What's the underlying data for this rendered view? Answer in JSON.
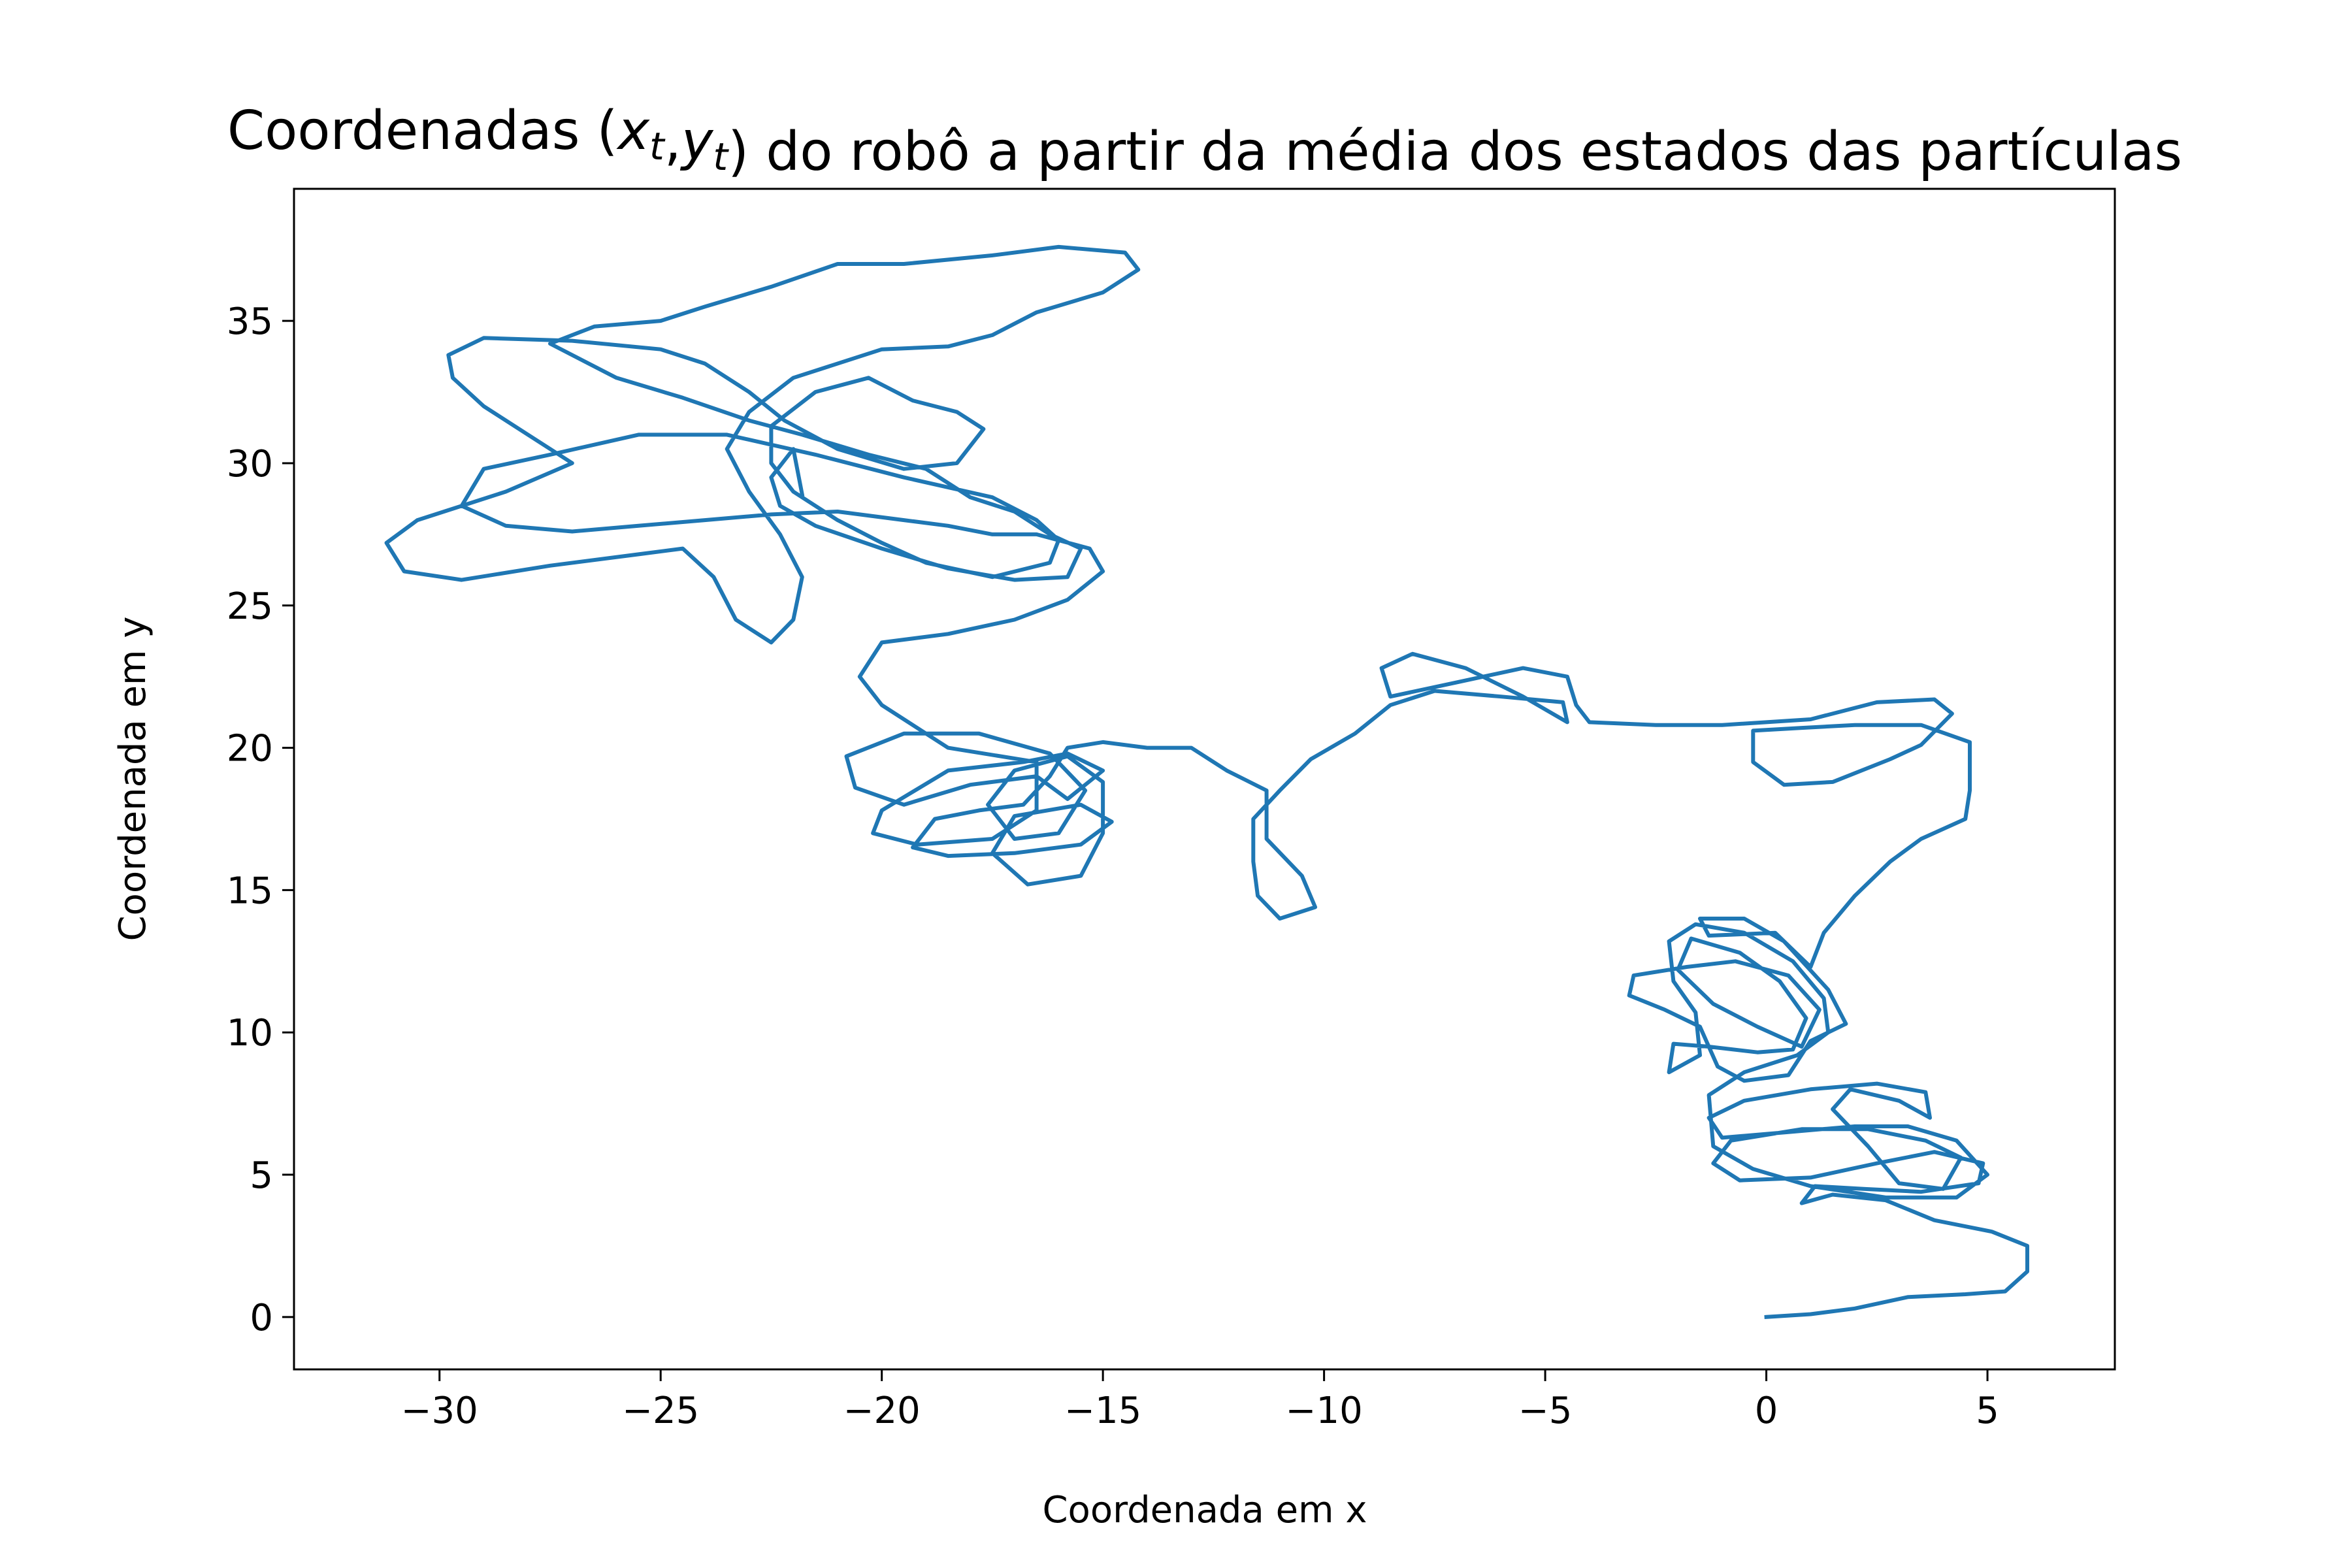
{
  "chart_data": {
    "type": "line",
    "title": "Coordenadas ($x_t$,$y_t$) do robô a partir da média dos estados das partículas",
    "x_label": "Coordenada em x",
    "y_label": "Coordenada em y",
    "color": "#1f77b4",
    "x": [
      0,
      1,
      2,
      3.2,
      4.5,
      5.4,
      5.9,
      5.9,
      5.1,
      3.8,
      2.7,
      1.5,
      0.8,
      1.1,
      2.2,
      3.5,
      4.8,
      4.9,
      3.8,
      2.5,
      1.0,
      -0.6,
      -1.2,
      -0.8,
      0.8,
      2.3,
      3.6,
      4.4,
      4.0,
      3.0,
      2.3,
      1.5,
      1.9,
      3.0,
      3.7,
      3.6,
      2.5,
      1.0,
      -0.5,
      -1.3,
      -1.0,
      0.5,
      2.0,
      3.2,
      4.3,
      5.0,
      4.3,
      2.7,
      1.0,
      -0.3,
      -1.2,
      -1.3,
      -0.5,
      0.7,
      1.4,
      1.3,
      0.6,
      -0.5,
      -1.6,
      -2.2,
      -2.1,
      -1.6,
      -1.5,
      -2.2,
      -2.1,
      -1.3,
      -0.2,
      0.6,
      0.9,
      0.3,
      -0.6,
      -1.7,
      -2.0,
      -1.2,
      -0.2,
      0.8,
      1.2,
      0.5,
      -0.7,
      -1.8,
      -3.0,
      -3.1,
      -2.3,
      -1.5,
      -1.1,
      -0.5,
      0.5,
      1.0,
      1.8,
      1.4,
      0.4,
      -0.5,
      -1.5,
      -1.3,
      0.2,
      1.0,
      1.3,
      2.0,
      2.8,
      3.5,
      4.5,
      4.6,
      4.6,
      3.5,
      2.0,
      0.8,
      -0.3,
      -0.3,
      0.4,
      1.5,
      2.8,
      3.5,
      4.2,
      3.8,
      2.5,
      1.0,
      -1.0,
      -2.5,
      -4.0,
      -4.3,
      -4.5,
      -5.5,
      -7.0,
      -8.5,
      -8.7,
      -8.0,
      -6.8,
      -5.5,
      -4.5,
      -4.6,
      -6.0,
      -7.5,
      -8.5,
      -9.3,
      -10.3,
      -11.0,
      -11.6,
      -11.6,
      -11.5,
      -11.0,
      -10.2,
      -10.5,
      -11.3,
      -11.3,
      -12.2,
      -13.0,
      -14.0,
      -15.0,
      -15.8,
      -16.2,
      -16.8,
      -17.8,
      -18.8,
      -19.3,
      -18.5,
      -17.0,
      -15.5,
      -14.8,
      -15.5,
      -17.0,
      -17.5,
      -16.7,
      -15.5,
      -15.0,
      -15.0,
      -15.8,
      -17.0,
      -17.6,
      -17.0,
      -16.0,
      -15.4,
      -16.2,
      -17.8,
      -19.5,
      -20.8,
      -20.6,
      -19.5,
      -18.0,
      -16.5,
      -15.8,
      -15.0,
      -15.8,
      -16.8,
      -18.5,
      -20.0,
      -20.2,
      -19.2,
      -17.5,
      -16.5,
      -16.5,
      -18.5,
      -20.0,
      -20.5,
      -20.0,
      -18.5,
      -17.0,
      -15.8,
      -15.0,
      -15.3,
      -16.5,
      -17.5,
      -18.5,
      -19.5,
      -21.0,
      -22.5,
      -24.0,
      -25.5,
      -27.0,
      -28.5,
      -29.5,
      -29.0,
      -27.5,
      -25.5,
      -23.5,
      -21.5,
      -19.5,
      -17.5,
      -16.5,
      -16.0,
      -16.2,
      -17.5,
      -19.0,
      -20.0,
      -21.0,
      -22.0,
      -22.5,
      -22.5,
      -21.5,
      -20.3,
      -19.3,
      -18.3,
      -17.7,
      -18.3,
      -19.5,
      -21.0,
      -22.2,
      -23.0,
      -24.0,
      -25.0,
      -27.0,
      -29.0,
      -29.8,
      -29.7,
      -29.0,
      -28.0,
      -27.0,
      -28.5,
      -30.5,
      -31.2,
      -30.8,
      -29.5,
      -27.5,
      -25.5,
      -24.5,
      -23.8,
      -23.3,
      -22.5,
      -22.0,
      -21.8,
      -22.3,
      -23.0,
      -23.5,
      -23.0,
      -22.0,
      -20.0,
      -18.5,
      -17.5,
      -16.5,
      -15.0,
      -14.2,
      -14.5,
      -16.0,
      -17.5,
      -19.5,
      -21.0,
      -22.5,
      -24.0,
      -25.0,
      -26.5,
      -27.5,
      -26.0,
      -24.5,
      -23.0,
      -21.8,
      -20.3,
      -19.0,
      -18.0,
      -17.0,
      -16.2,
      -15.5,
      -15.8,
      -17.0,
      -18.5,
      -20.0,
      -21.5,
      -22.3,
      -22.5,
      -22.0,
      -21.8
    ],
    "values": [
      0,
      0.1,
      0.3,
      0.7,
      0.8,
      0.9,
      1.6,
      2.5,
      3.0,
      3.4,
      4.1,
      4.3,
      4.0,
      4.6,
      4.5,
      4.4,
      4.7,
      5.4,
      5.8,
      5.4,
      4.9,
      4.8,
      5.4,
      6.2,
      6.6,
      6.6,
      6.2,
      5.6,
      4.5,
      4.7,
      6.0,
      7.3,
      8.0,
      7.6,
      7.0,
      7.9,
      8.2,
      8.0,
      7.6,
      7.0,
      6.3,
      6.5,
      6.7,
      6.7,
      6.2,
      5.0,
      4.2,
      4.2,
      4.6,
      5.2,
      6.0,
      7.8,
      8.6,
      9.2,
      10.0,
      11.2,
      12.5,
      13.5,
      13.8,
      13.2,
      11.8,
      10.7,
      9.2,
      8.6,
      9.6,
      9.5,
      9.3,
      9.4,
      10.5,
      11.8,
      12.8,
      13.3,
      12.2,
      11.0,
      10.2,
      9.5,
      10.8,
      12.0,
      12.5,
      12.3,
      12.0,
      11.3,
      10.8,
      10.2,
      8.8,
      8.3,
      8.5,
      9.7,
      10.3,
      11.5,
      13.2,
      14.0,
      14.0,
      13.4,
      13.5,
      12.3,
      13.5,
      14.8,
      16.0,
      16.8,
      17.5,
      18.5,
      20.2,
      20.8,
      20.8,
      20.7,
      20.6,
      19.5,
      18.7,
      18.8,
      19.6,
      20.1,
      21.2,
      21.7,
      21.6,
      21.0,
      20.8,
      20.8,
      20.9,
      21.5,
      22.5,
      22.8,
      22.3,
      21.8,
      22.8,
      23.3,
      22.8,
      21.8,
      20.9,
      21.6,
      21.8,
      22.0,
      21.5,
      20.5,
      19.6,
      18.5,
      17.5,
      16.0,
      14.8,
      14.0,
      14.4,
      15.5,
      16.8,
      18.5,
      19.2,
      20.0,
      20.0,
      20.2,
      20.0,
      19.0,
      18.0,
      17.8,
      17.5,
      16.5,
      16.2,
      16.3,
      16.6,
      17.4,
      18.0,
      17.6,
      16.3,
      15.2,
      15.5,
      17.0,
      18.8,
      19.7,
      19.2,
      18.0,
      16.8,
      17.0,
      18.5,
      19.8,
      20.5,
      20.5,
      19.7,
      18.6,
      18.0,
      18.7,
      19.0,
      18.2,
      19.2,
      19.8,
      19.5,
      19.2,
      17.8,
      17.0,
      16.6,
      16.8,
      17.8,
      19.5,
      20.0,
      21.5,
      22.5,
      23.7,
      24.0,
      24.5,
      25.2,
      26.2,
      27.0,
      27.5,
      27.5,
      27.8,
      28.0,
      28.3,
      28.2,
      28.0,
      27.8,
      27.6,
      27.8,
      28.5,
      29.8,
      30.3,
      31.0,
      31.0,
      30.3,
      29.5,
      28.8,
      28.0,
      27.3,
      26.5,
      26.0,
      26.5,
      27.2,
      28.0,
      29.0,
      30.0,
      31.3,
      32.5,
      33.0,
      32.2,
      31.8,
      31.2,
      30.0,
      29.8,
      30.5,
      31.5,
      32.5,
      33.5,
      34.0,
      34.3,
      34.4,
      33.8,
      33.0,
      32.0,
      31.0,
      30.0,
      29.0,
      28.0,
      27.2,
      26.2,
      25.9,
      26.4,
      26.8,
      27.0,
      26.0,
      24.5,
      23.7,
      24.5,
      26.0,
      27.5,
      29.0,
      30.5,
      31.8,
      33.0,
      34.0,
      34.1,
      34.5,
      35.3,
      36.0,
      36.8,
      37.4,
      37.6,
      37.3,
      37.0,
      37.0,
      36.2,
      35.5,
      35.0,
      34.8,
      34.2,
      33.0,
      32.3,
      31.5,
      31.0,
      30.3,
      29.8,
      28.8,
      28.3,
      27.5,
      27.0,
      26.0,
      25.9,
      26.3,
      27.0,
      27.8,
      28.5,
      29.5,
      30.5,
      28.9
    ],
    "xlim": [
      -33.29,
      7.88
    ],
    "ylim": [
      -1.84,
      39.64
    ],
    "xticks": [
      {
        "value": -30,
        "label": "−30"
      },
      {
        "value": -25,
        "label": "−25"
      },
      {
        "value": -20,
        "label": "−20"
      },
      {
        "value": -15,
        "label": "−15"
      },
      {
        "value": -10,
        "label": "−10"
      },
      {
        "value": -5,
        "label": "−5"
      },
      0,
      5
    ],
    "yticks": [
      0,
      5,
      10,
      15,
      20,
      25,
      30,
      35
    ]
  }
}
